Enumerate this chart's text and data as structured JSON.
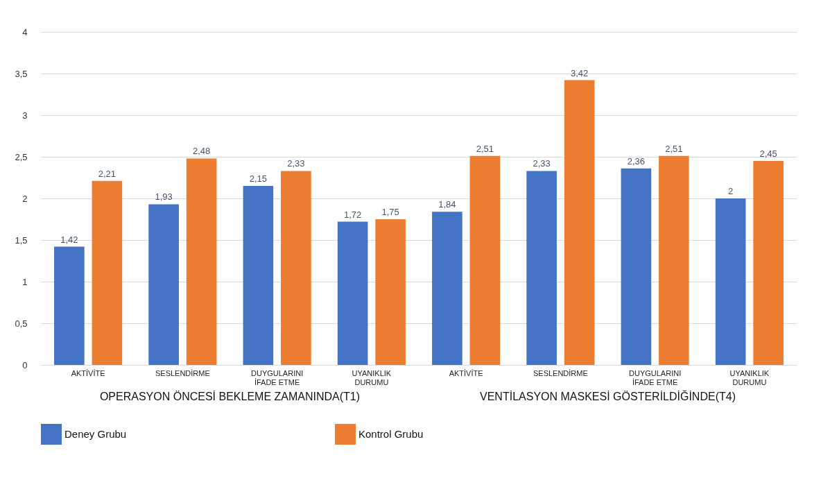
{
  "chart_data": {
    "type": "bar",
    "categories": [
      "AKTİVİTE",
      "SESLENDİRME",
      "DUYGULARINI İFADE ETME",
      "UYANIKLIK DURUMU",
      "AKTİVİTE",
      "SESLENDİRME",
      "DUYGULARINI İFADE ETME",
      "UYANIKLIK DURUMU"
    ],
    "series": [
      {
        "name": "Deney Grubu",
        "color": "#4472c4",
        "values": [
          1.42,
          1.93,
          2.15,
          1.72,
          1.84,
          2.33,
          2.36,
          2
        ],
        "value_labels": [
          "1,42",
          "1,93",
          "2,15",
          "1,72",
          "1,84",
          "2,33",
          "2,36",
          "2"
        ]
      },
      {
        "name": "Kontrol Grubu",
        "color": "#ed7d31",
        "values": [
          2.21,
          2.48,
          2.33,
          1.75,
          2.51,
          3.42,
          2.51,
          2.45
        ],
        "value_labels": [
          "2,21",
          "2,48",
          "2,33",
          "1,75",
          "2,51",
          "3,42",
          "2,51",
          "2,45"
        ]
      }
    ],
    "annotations": [
      "OPERASYON ÖNCESİ BEKLEME ZAMANINDA(T1)",
      "VENTİLASYON MASKESİ GÖSTERİLDİĞİNDE(T4)"
    ],
    "ylim": [
      0,
      4
    ],
    "yticks": [
      0,
      {
        "value": 0.5,
        "label": "0,5"
      },
      1,
      {
        "value": 1.5,
        "label": "1,5"
      },
      2,
      {
        "value": 2.5,
        "label": "2,5"
      },
      3,
      {
        "value": 3.5,
        "label": "3,5"
      },
      4
    ],
    "grid": "y",
    "legend": "bottom"
  }
}
